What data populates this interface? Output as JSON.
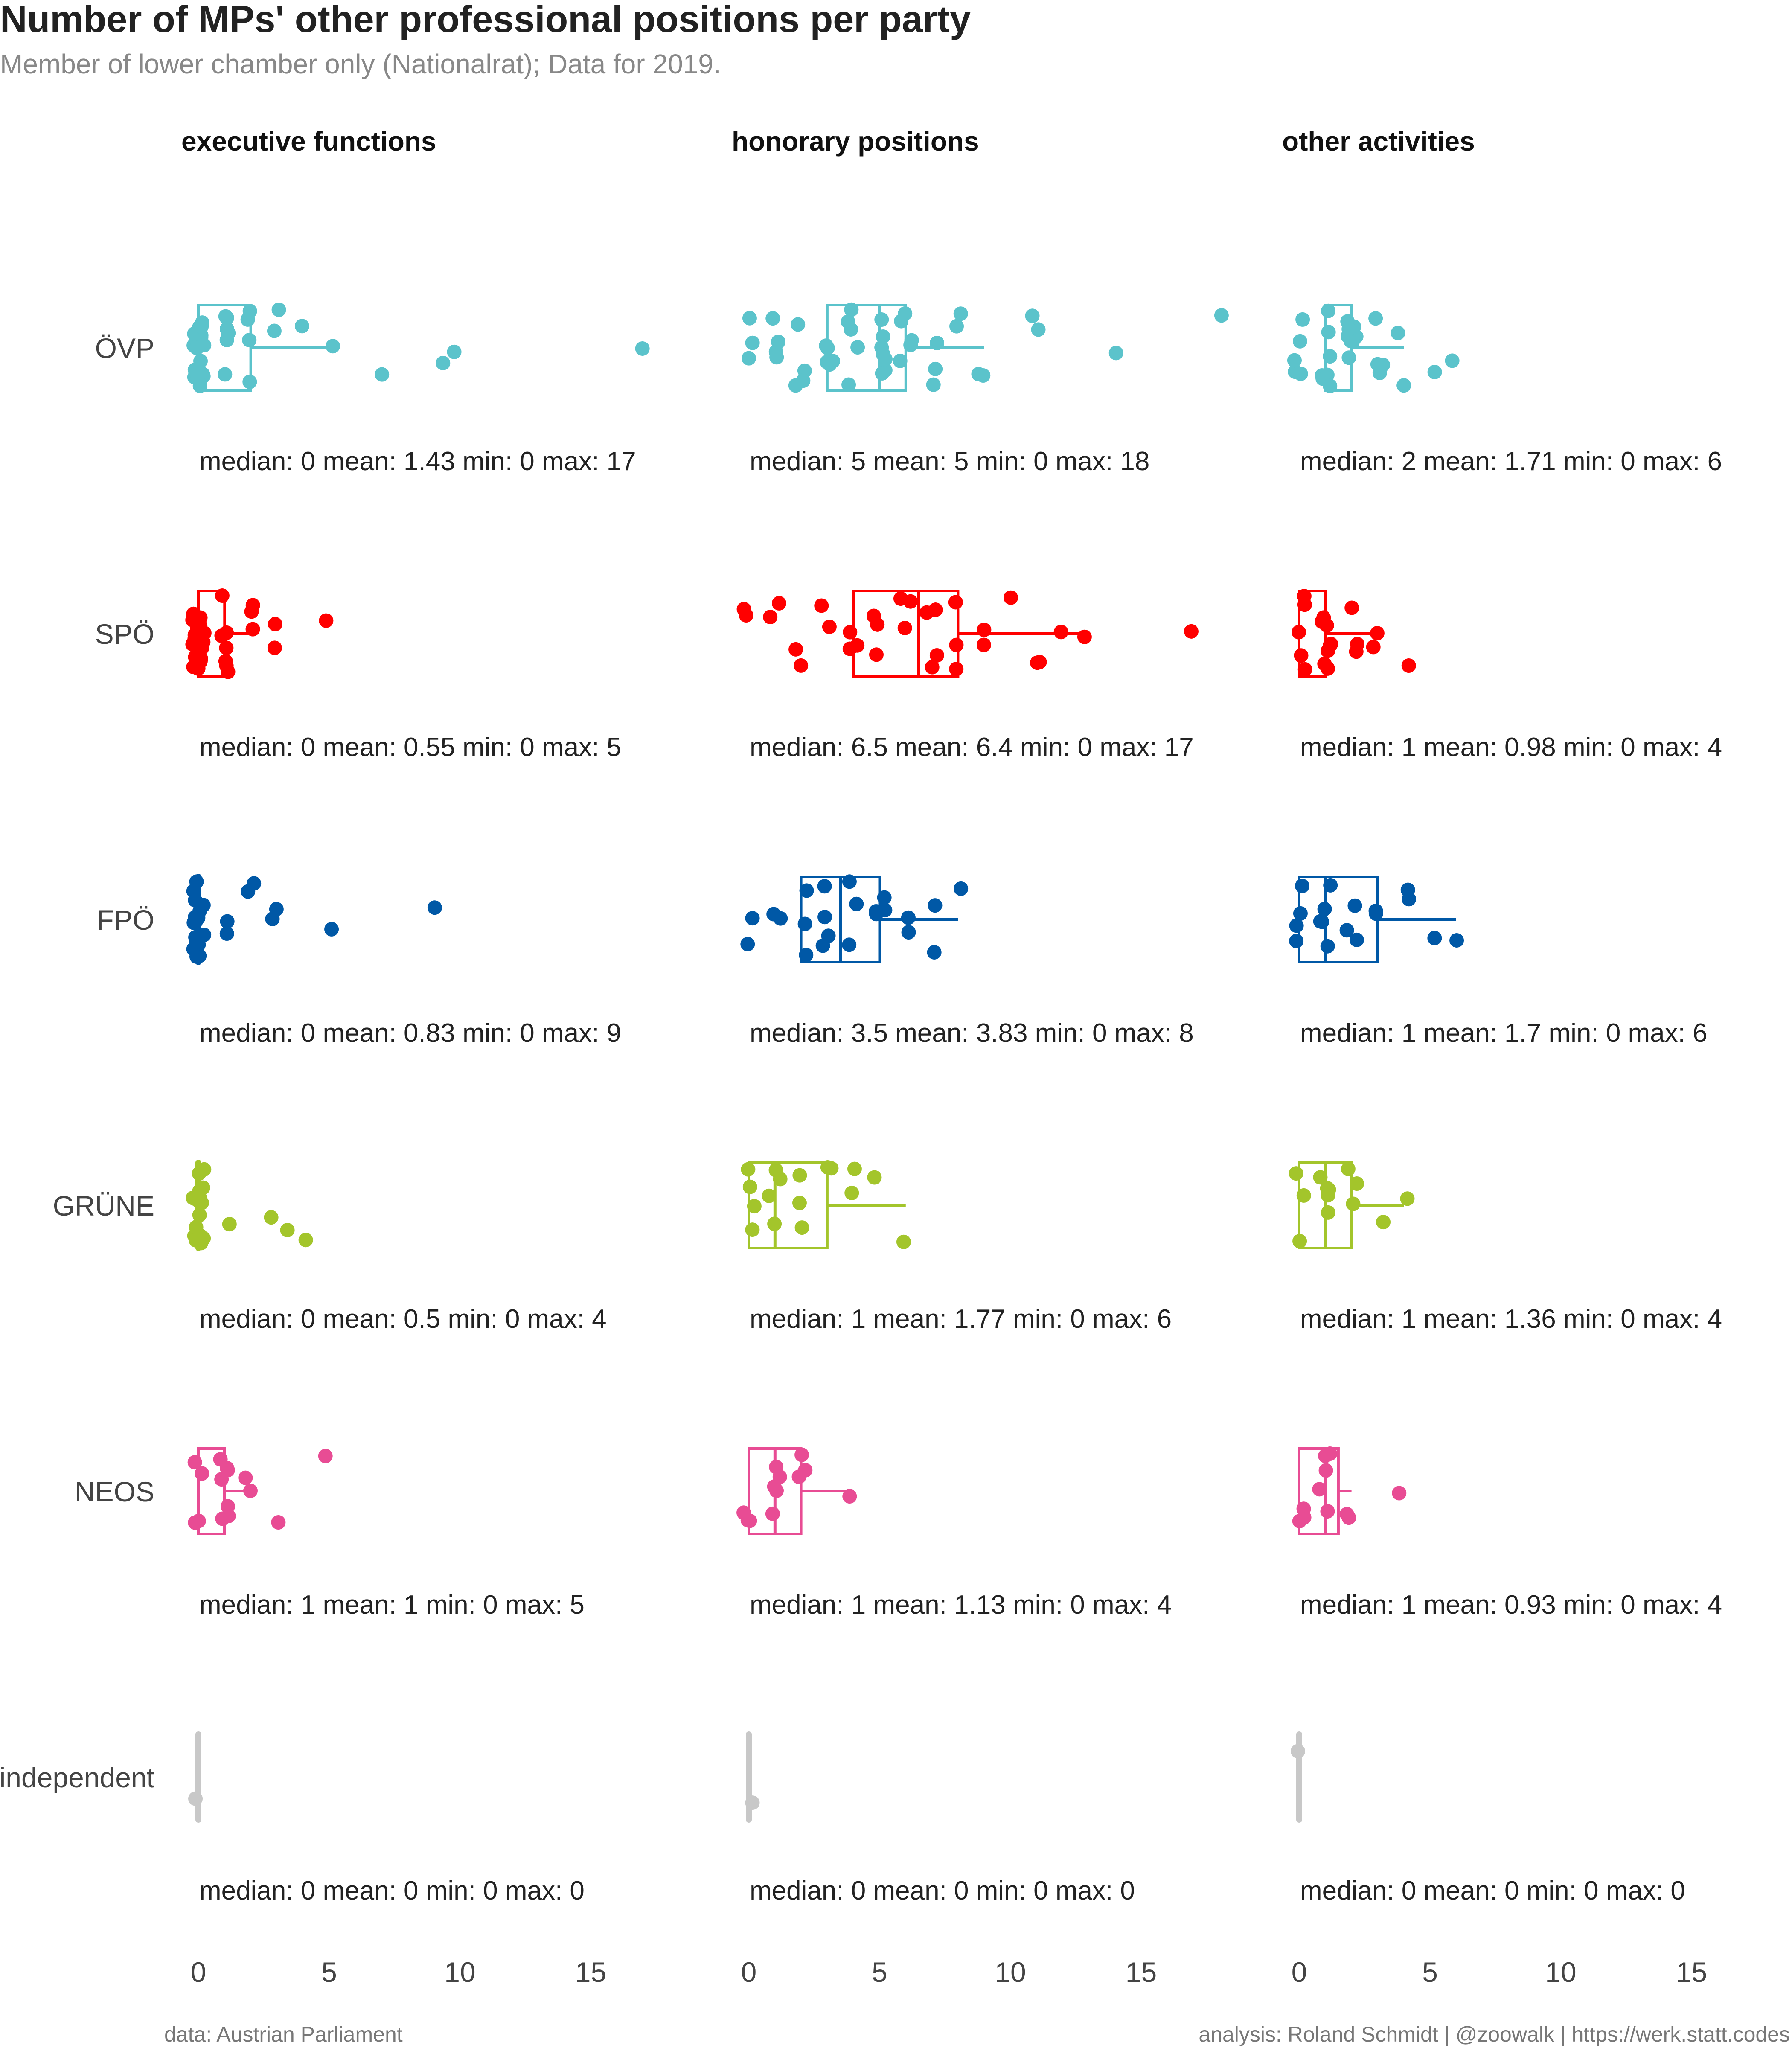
{
  "chart_data": {
    "type": "box + jittered strip plot (faceted)",
    "title": "Number of MPs' other professional positions per party",
    "subtitle": "Member of lower chamber only (Nationalrat); Data for 2019.",
    "facets": [
      "executive functions",
      "honorary positions",
      "other activities"
    ],
    "parties": [
      "ÖVP",
      "SPÖ",
      "FPÖ",
      "GRÜNE",
      "NEOS",
      "independent"
    ],
    "colors": {
      "ÖVP": "#5BC3CB",
      "SPÖ": "#FF0000",
      "FPÖ": "#0058A6",
      "GRÜNE": "#A3C52B",
      "NEOS": "#E84C94",
      "independent": "#C8C8C8"
    },
    "x_ticks": [
      0,
      5,
      10,
      15
    ],
    "xlim": [
      -0.5,
      18.5
    ],
    "grid": false,
    "cells": [
      [
        {
          "q1": 0,
          "median": 0,
          "q3": 2,
          "whisker_hi": 5,
          "outliers": [
            7,
            10,
            9.3,
            17
          ],
          "points": [
            0,
            0,
            0,
            0,
            0,
            0,
            0,
            0,
            0,
            0,
            0,
            0,
            0,
            0,
            0,
            0,
            0,
            0,
            0,
            0,
            0,
            1,
            1,
            1,
            1,
            1,
            1,
            2,
            2,
            2,
            2,
            3,
            3,
            4,
            5,
            7,
            9.3,
            10,
            17
          ],
          "label": "median: 0 mean: 1.43 min: 0 max: 17"
        },
        {
          "q1": 0,
          "median": 0,
          "q3": 1,
          "whisker_hi": 2,
          "outliers": [
            3,
            5
          ],
          "points": [
            0,
            0,
            0,
            0,
            0,
            0,
            0,
            0,
            0,
            0,
            0,
            0,
            0,
            0,
            0,
            0,
            0,
            0,
            0,
            0,
            1,
            1,
            1,
            1,
            1,
            1,
            1,
            2,
            2,
            2,
            3,
            3,
            5
          ],
          "label": "median: 0 mean: 0.55 min: 0 max: 5"
        },
        {
          "q1": 0,
          "median": 0,
          "q3": 0,
          "whisker_hi": 0,
          "outliers": [
            2,
            3,
            5,
            9
          ],
          "points": [
            0,
            0,
            0,
            0,
            0,
            0,
            0,
            0,
            0,
            0,
            0,
            0,
            0,
            0,
            0,
            0,
            0,
            0,
            0,
            0,
            0,
            1,
            1,
            2,
            2,
            3,
            3,
            5,
            9
          ],
          "label": "median: 0 mean: 0.83 min: 0 max: 9"
        },
        {
          "q1": 0,
          "median": 0,
          "q3": 0,
          "whisker_hi": 0,
          "outliers": [
            1,
            3,
            3.5,
            4
          ],
          "points": [
            0,
            0,
            0,
            0,
            0,
            0,
            0,
            0,
            0,
            0,
            0,
            0,
            0,
            0,
            0,
            0,
            0,
            1,
            3,
            3.5,
            4
          ],
          "label": "median: 0 mean: 0.5 min: 0 max: 4"
        },
        {
          "q1": 0,
          "median": 1,
          "q3": 1,
          "whisker_hi": 2,
          "outliers": [
            3,
            5
          ],
          "points": [
            0,
            0,
            0,
            0,
            1,
            1,
            1,
            1,
            1,
            1,
            1,
            2,
            2,
            3,
            5
          ],
          "label": "median: 1 mean: 1 min: 0 max: 5"
        },
        {
          "q1": 0,
          "median": 0,
          "q3": 0,
          "whisker_hi": 0,
          "outliers": [],
          "points": [
            0
          ],
          "label": "median: 0 mean: 0 min: 0 max: 0"
        }
      ],
      [
        {
          "q1": 3,
          "median": 5,
          "q3": 6,
          "whisker_hi": 9,
          "outliers": [
            11,
            14,
            18
          ],
          "points": [
            0,
            0,
            0,
            1,
            1,
            1,
            1,
            2,
            2,
            2,
            2,
            3,
            3,
            3,
            3,
            3,
            4,
            4,
            4,
            4,
            4,
            5,
            5,
            5,
            5,
            5,
            5,
            5,
            6,
            6,
            6,
            6,
            6,
            7,
            7,
            7,
            8,
            8,
            9,
            9,
            11,
            11,
            14,
            18
          ],
          "label": "median: 5 mean: 5 min: 0 max: 18"
        },
        {
          "q1": 4,
          "median": 6.5,
          "q3": 8,
          "whisker_hi": 13,
          "outliers": [
            17
          ],
          "points": [
            0,
            0,
            1,
            1,
            2,
            2,
            3,
            3,
            4,
            4,
            4,
            5,
            5,
            5,
            6,
            6,
            6,
            7,
            7,
            7,
            7,
            8,
            8,
            8,
            9,
            9,
            10,
            11,
            11,
            12,
            13,
            17
          ],
          "label": "median: 6.5 mean: 6.4 min: 0 max: 17"
        },
        {
          "q1": 2,
          "median": 3.5,
          "q3": 5,
          "whisker_hi": 8,
          "outliers": [],
          "points": [
            0,
            0,
            1,
            1,
            2,
            2,
            2,
            3,
            3,
            3,
            3,
            4,
            4,
            4,
            5,
            5,
            5,
            5,
            6,
            6,
            7,
            7,
            8
          ],
          "label": "median: 3.5 mean: 3.83 min: 0 max: 8"
        },
        {
          "q1": 0,
          "median": 1,
          "q3": 3,
          "whisker_hi": 6,
          "outliers": [],
          "points": [
            0,
            0,
            0,
            0,
            1,
            1,
            1,
            1,
            2,
            2,
            2,
            3,
            3,
            4,
            4,
            5,
            6
          ],
          "label": "median: 1 mean: 1.77 min: 0 max: 6"
        },
        {
          "q1": 0,
          "median": 1,
          "q3": 2,
          "whisker_hi": 4,
          "outliers": [],
          "points": [
            0,
            0,
            0,
            1,
            1,
            1,
            1,
            1,
            2,
            2,
            2,
            4
          ],
          "label": "median: 1 mean: 1.13 min: 0 max: 4"
        },
        {
          "q1": 0,
          "median": 0,
          "q3": 0,
          "whisker_hi": 0,
          "outliers": [],
          "points": [
            0
          ],
          "label": "median: 0 mean: 0 min: 0 max: 0"
        }
      ],
      [
        {
          "q1": 1,
          "median": 2,
          "q3": 2,
          "whisker_hi": 4,
          "outliers": [
            5,
            6
          ],
          "points": [
            0,
            0,
            0,
            0,
            0,
            1,
            1,
            1,
            1,
            1,
            1,
            1,
            2,
            2,
            2,
            2,
            2,
            2,
            2,
            2,
            3,
            3,
            3,
            3,
            4,
            4,
            5,
            6
          ],
          "label": "median: 2 mean: 1.71 min: 0 max: 6"
        },
        {
          "q1": 0,
          "median": 1,
          "q3": 1,
          "whisker_hi": 3,
          "outliers": [
            4
          ],
          "points": [
            0,
            0,
            0,
            0,
            0,
            1,
            1,
            1,
            1,
            1,
            1,
            1,
            1,
            2,
            2,
            2,
            3,
            3,
            4
          ],
          "label": "median: 1 mean: 0.98 min: 0 max: 4"
        },
        {
          "q1": 0,
          "median": 1,
          "q3": 3,
          "whisker_hi": 6,
          "outliers": [],
          "points": [
            0,
            0,
            0,
            0,
            1,
            1,
            1,
            1,
            1,
            2,
            2,
            2,
            3,
            3,
            4,
            4,
            5,
            6
          ],
          "label": "median: 1 mean: 1.7 min: 0 max: 6"
        },
        {
          "q1": 0,
          "median": 1,
          "q3": 2,
          "whisker_hi": 4,
          "outliers": [],
          "points": [
            0,
            0,
            0,
            1,
            1,
            1,
            1,
            1,
            2,
            2,
            2,
            3,
            4
          ],
          "label": "median: 1 mean: 1.36 min: 0 max: 4"
        },
        {
          "q1": 0,
          "median": 1,
          "q3": 1.5,
          "whisker_hi": 2,
          "outliers": [
            4
          ],
          "points": [
            0,
            0,
            0,
            1,
            1,
            1,
            1,
            1,
            2,
            2,
            4
          ],
          "label": "median: 1 mean: 0.93 min: 0 max: 4"
        },
        {
          "q1": 0,
          "median": 0,
          "q3": 0,
          "whisker_hi": 0,
          "outliers": [],
          "points": [
            0
          ],
          "label": "median: 0 mean: 0 min: 0 max: 0"
        }
      ]
    ]
  },
  "caption_left": "data: Austrian Parliament",
  "caption_right": "analysis: Roland Schmidt | @zoowalk | https://werk.statt.codes"
}
